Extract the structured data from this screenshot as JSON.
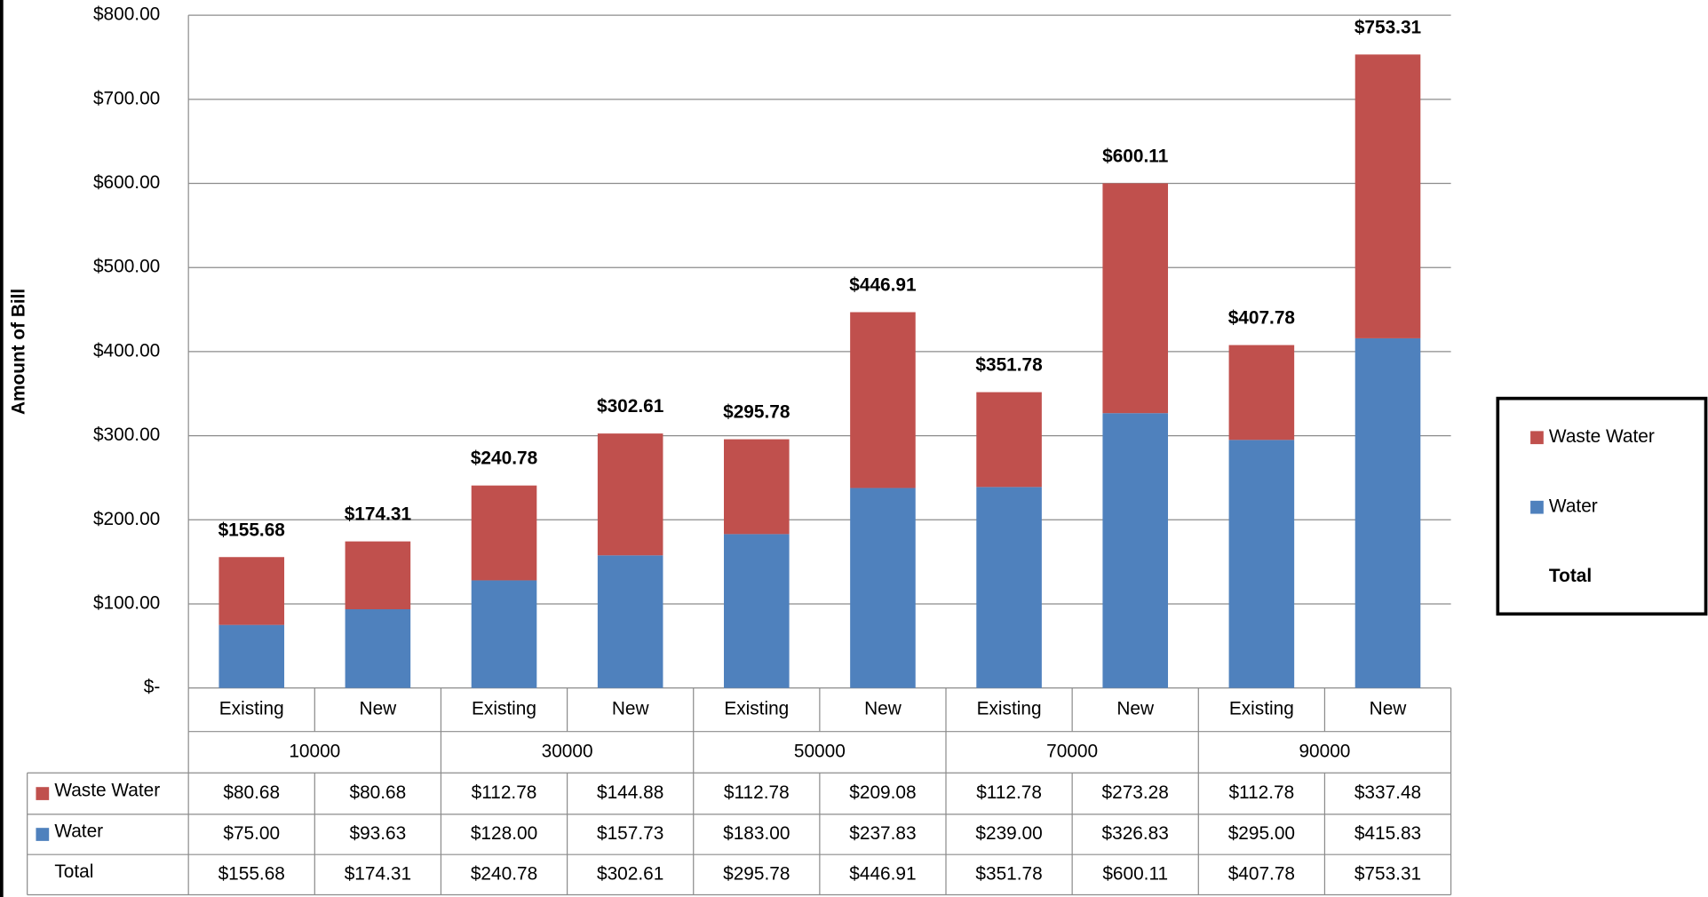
{
  "chart_data": {
    "type": "bar",
    "stacked": true,
    "y_label": "Amount of Bill",
    "categories": [
      "Existing",
      "New",
      "Existing",
      "New",
      "Existing",
      "New",
      "Existing",
      "New",
      "Existing",
      "New"
    ],
    "category_groups": [
      "10000",
      "30000",
      "50000",
      "70000",
      "90000"
    ],
    "series": [
      {
        "name": "Water",
        "color": "#4f81bd",
        "values": [
          75.0,
          93.63,
          128.0,
          157.73,
          183.0,
          237.83,
          239.0,
          326.83,
          295.0,
          415.83
        ],
        "value_labels": [
          "$75.00",
          "$93.63",
          "$128.00",
          "$157.73",
          "$183.00",
          "$237.83",
          "$239.00",
          "$326.83",
          "$295.00",
          "$415.83"
        ]
      },
      {
        "name": "Waste Water",
        "color": "#c0504d",
        "values": [
          80.68,
          80.68,
          112.78,
          144.88,
          112.78,
          209.08,
          112.78,
          273.28,
          112.78,
          337.48
        ],
        "value_labels": [
          "$80.68",
          "$80.68",
          "$112.78",
          "$144.88",
          "$112.78",
          "$209.08",
          "$112.78",
          "$273.28",
          "$112.78",
          "$337.48"
        ]
      }
    ],
    "total": {
      "name": "Total",
      "values": [
        155.68,
        174.31,
        240.78,
        302.61,
        295.78,
        446.91,
        351.78,
        600.11,
        407.78,
        753.31
      ],
      "value_labels": [
        "$155.68",
        "$174.31",
        "$240.78",
        "$302.61",
        "$295.78",
        "$446.91",
        "$351.78",
        "$600.11",
        "$407.78",
        "$753.31"
      ]
    },
    "ylim": [
      0,
      800
    ],
    "yticks": [
      {
        "value": 0,
        "label": "$-"
      },
      {
        "value": 100,
        "label": "$100.00"
      },
      {
        "value": 200,
        "label": "$200.00"
      },
      {
        "value": 300,
        "label": "$300.00"
      },
      {
        "value": 400,
        "label": "$400.00"
      },
      {
        "value": 500,
        "label": "$500.00"
      },
      {
        "value": 600,
        "label": "$600.00"
      },
      {
        "value": 700,
        "label": "$700.00"
      },
      {
        "value": 800,
        "label": "$800.00"
      }
    ],
    "grid": true,
    "legend": "right"
  }
}
